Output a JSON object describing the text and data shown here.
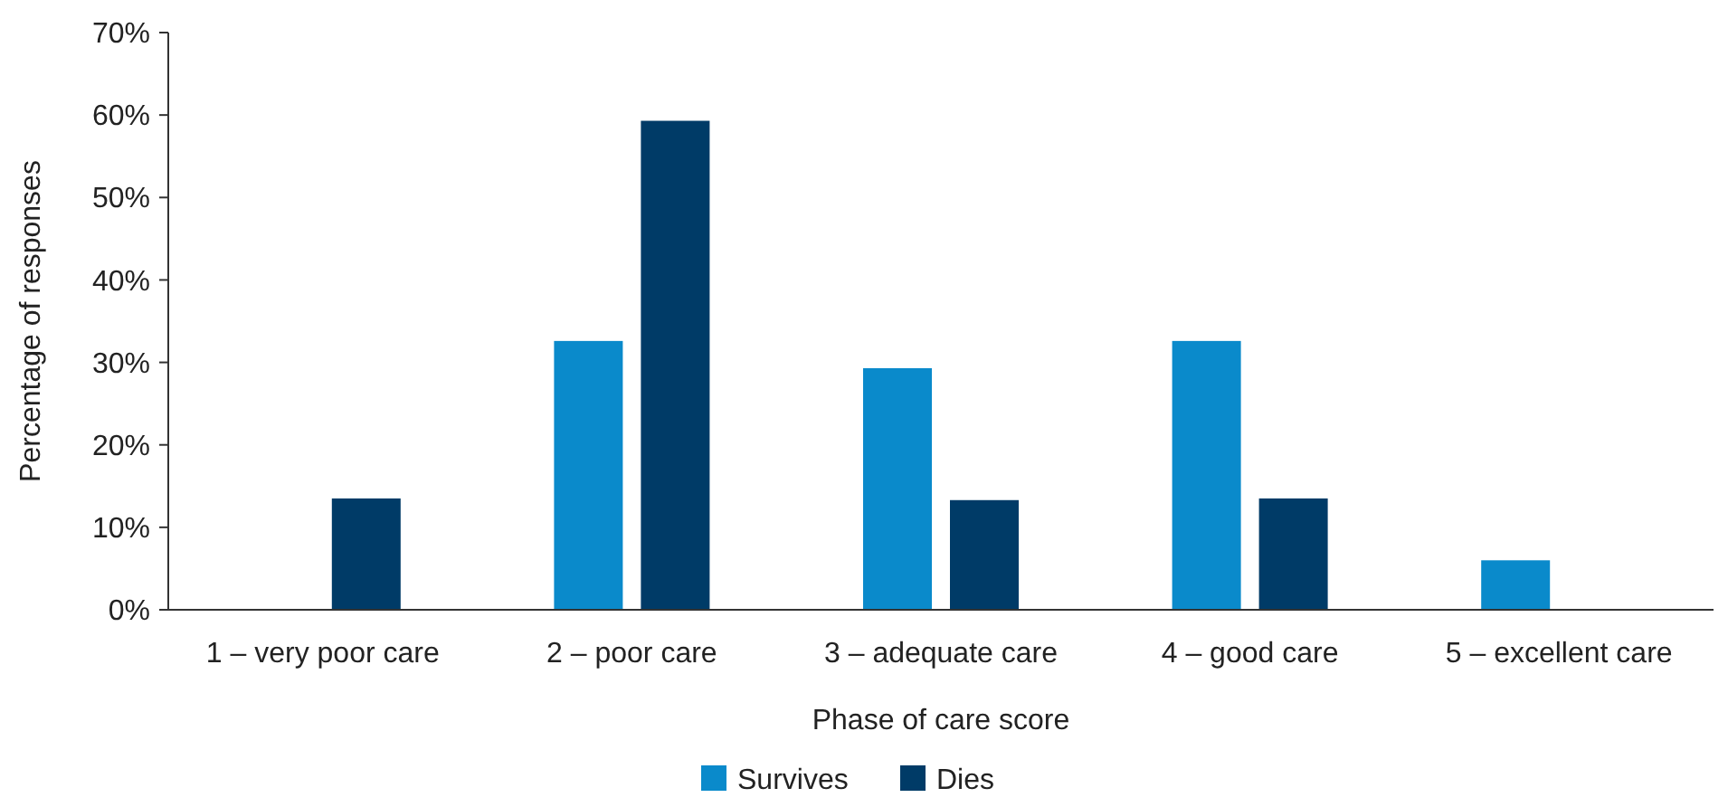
{
  "chart_data": {
    "type": "bar",
    "xlabel": "Phase of care score",
    "ylabel": "Percentage of responses",
    "categories": [
      "1 – very poor care",
      "2 – poor care",
      "3 – adequate care",
      "4 – good care",
      "5 – excellent care"
    ],
    "series": [
      {
        "name": "Survives",
        "color": "#0a8acb",
        "values": [
          0,
          32.6,
          29.3,
          32.6,
          6
        ]
      },
      {
        "name": "Dies",
        "color": "#003b67",
        "values": [
          13.5,
          59.3,
          13.3,
          13.5,
          0
        ]
      }
    ],
    "ylim": [
      0,
      70
    ],
    "yticks": [
      {
        "value": 0,
        "label": "0%"
      },
      {
        "value": 10,
        "label": "10%"
      },
      {
        "value": 20,
        "label": "20%"
      },
      {
        "value": 30,
        "label": "30%"
      },
      {
        "value": 40,
        "label": "40%"
      },
      {
        "value": 50,
        "label": "50%"
      },
      {
        "value": 60,
        "label": "60%"
      },
      {
        "value": 70,
        "label": "70%"
      }
    ],
    "grid": false,
    "legend": "bottom"
  }
}
